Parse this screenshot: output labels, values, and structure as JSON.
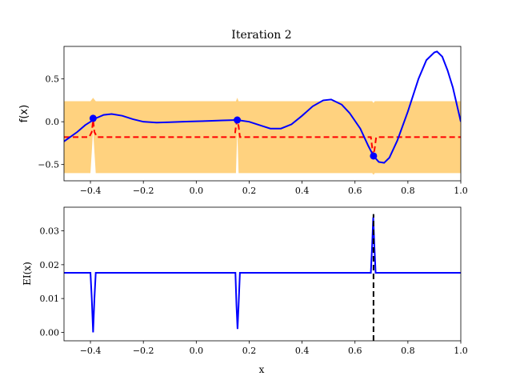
{
  "chart_data": [
    {
      "type": "line",
      "title": "Iteration 2",
      "xlabel": "x",
      "ylabel": "f(x)",
      "xlim": [
        -0.5,
        1.0
      ],
      "ylim": [
        -0.69,
        0.88
      ],
      "xticks": [
        -0.4,
        -0.2,
        0.0,
        0.2,
        0.4,
        0.6,
        0.8,
        1.0
      ],
      "xtick_labels": [
        "−0.4",
        "−0.2",
        "0.0",
        "0.2",
        "0.4",
        "0.6",
        "0.8",
        "1.0"
      ],
      "yticks": [
        -0.5,
        0.0,
        0.5
      ],
      "ytick_labels": [
        "−0.5",
        "0.0",
        "0.5"
      ],
      "grid": false,
      "series": [
        {
          "role": "objective",
          "color": "#0000ff",
          "x": [
            -0.5,
            -0.45,
            -0.42,
            -0.4,
            -0.38,
            -0.35,
            -0.32,
            -0.28,
            -0.24,
            -0.2,
            -0.15,
            -0.1,
            -0.05,
            0.0,
            0.05,
            0.1,
            0.155,
            0.2,
            0.25,
            0.28,
            0.32,
            0.36,
            0.4,
            0.44,
            0.48,
            0.51,
            0.55,
            0.58,
            0.62,
            0.65,
            0.67,
            0.69,
            0.71,
            0.73,
            0.76,
            0.8,
            0.84,
            0.87,
            0.9,
            0.91,
            0.93,
            0.95,
            0.97,
            1.0
          ],
          "y": [
            -0.23,
            -0.12,
            -0.04,
            0.0,
            0.04,
            0.08,
            0.09,
            0.07,
            0.03,
            0.0,
            -0.01,
            -0.005,
            0.0,
            0.005,
            0.01,
            0.015,
            0.02,
            0.0,
            -0.05,
            -0.08,
            -0.08,
            -0.03,
            0.07,
            0.18,
            0.25,
            0.26,
            0.2,
            0.1,
            -0.08,
            -0.28,
            -0.4,
            -0.47,
            -0.48,
            -0.42,
            -0.22,
            0.12,
            0.5,
            0.72,
            0.81,
            0.82,
            0.76,
            0.6,
            0.4,
            0.0
          ]
        },
        {
          "role": "surrogate-mean",
          "color": "#ff0000",
          "style": "dashed",
          "x": [
            -0.5,
            -0.405,
            -0.395,
            -0.39,
            -0.385,
            -0.375,
            0.145,
            0.15,
            0.155,
            0.16,
            0.165,
            0.66,
            0.665,
            0.67,
            0.675,
            0.68,
            1.0
          ],
          "y": [
            -0.18,
            -0.18,
            -0.12,
            0.02,
            -0.12,
            -0.18,
            -0.18,
            -0.05,
            0.02,
            -0.05,
            -0.18,
            -0.18,
            -0.3,
            -0.4,
            -0.3,
            -0.18,
            -0.18
          ]
        }
      ],
      "uncertainty_band": {
        "color": "#ffa500",
        "x": [
          -0.5,
          -0.4,
          -0.39,
          -0.38,
          0.15,
          0.155,
          0.16,
          0.665,
          0.67,
          0.675,
          1.0
        ],
        "upper": [
          0.24,
          0.24,
          0.28,
          0.24,
          0.24,
          0.28,
          0.24,
          0.24,
          0.22,
          0.24,
          0.24
        ],
        "lower": [
          -0.6,
          -0.6,
          -0.1,
          -0.6,
          -0.6,
          -0.1,
          -0.6,
          -0.6,
          -0.62,
          -0.6,
          -0.6
        ]
      },
      "observations": {
        "color": "#0000ff",
        "x": [
          -0.39,
          0.155,
          0.67
        ],
        "y": [
          0.04,
          0.02,
          -0.4
        ]
      }
    },
    {
      "type": "line",
      "title": "",
      "xlabel": "x",
      "ylabel": "EI(x)",
      "xlim": [
        -0.5,
        1.0
      ],
      "ylim": [
        -0.0025,
        0.037
      ],
      "xticks": [
        -0.4,
        -0.2,
        0.0,
        0.2,
        0.4,
        0.6,
        0.8,
        1.0
      ],
      "xtick_labels": [
        "−0.4",
        "−0.2",
        "0.0",
        "0.2",
        "0.4",
        "0.6",
        "0.8",
        "1.0"
      ],
      "yticks": [
        0.0,
        0.01,
        0.02,
        0.03
      ],
      "ytick_labels": [
        "0.00",
        "0.01",
        "0.02",
        "0.03"
      ],
      "grid": false,
      "series": [
        {
          "role": "expected-improvement",
          "color": "#0000ff",
          "x": [
            -0.5,
            -0.4,
            -0.395,
            -0.39,
            -0.385,
            -0.38,
            0.148,
            0.152,
            0.156,
            0.16,
            0.165,
            0.66,
            0.665,
            0.669,
            0.673,
            0.678,
            1.0
          ],
          "y": [
            0.0176,
            0.0176,
            0.01,
            0.0,
            0.01,
            0.0176,
            0.0176,
            0.008,
            0.001,
            0.008,
            0.0176,
            0.0176,
            0.026,
            0.034,
            0.026,
            0.0176,
            0.0176
          ]
        }
      ],
      "next_sample_x": 0.67,
      "next_sample_line_color": "#000000"
    }
  ]
}
